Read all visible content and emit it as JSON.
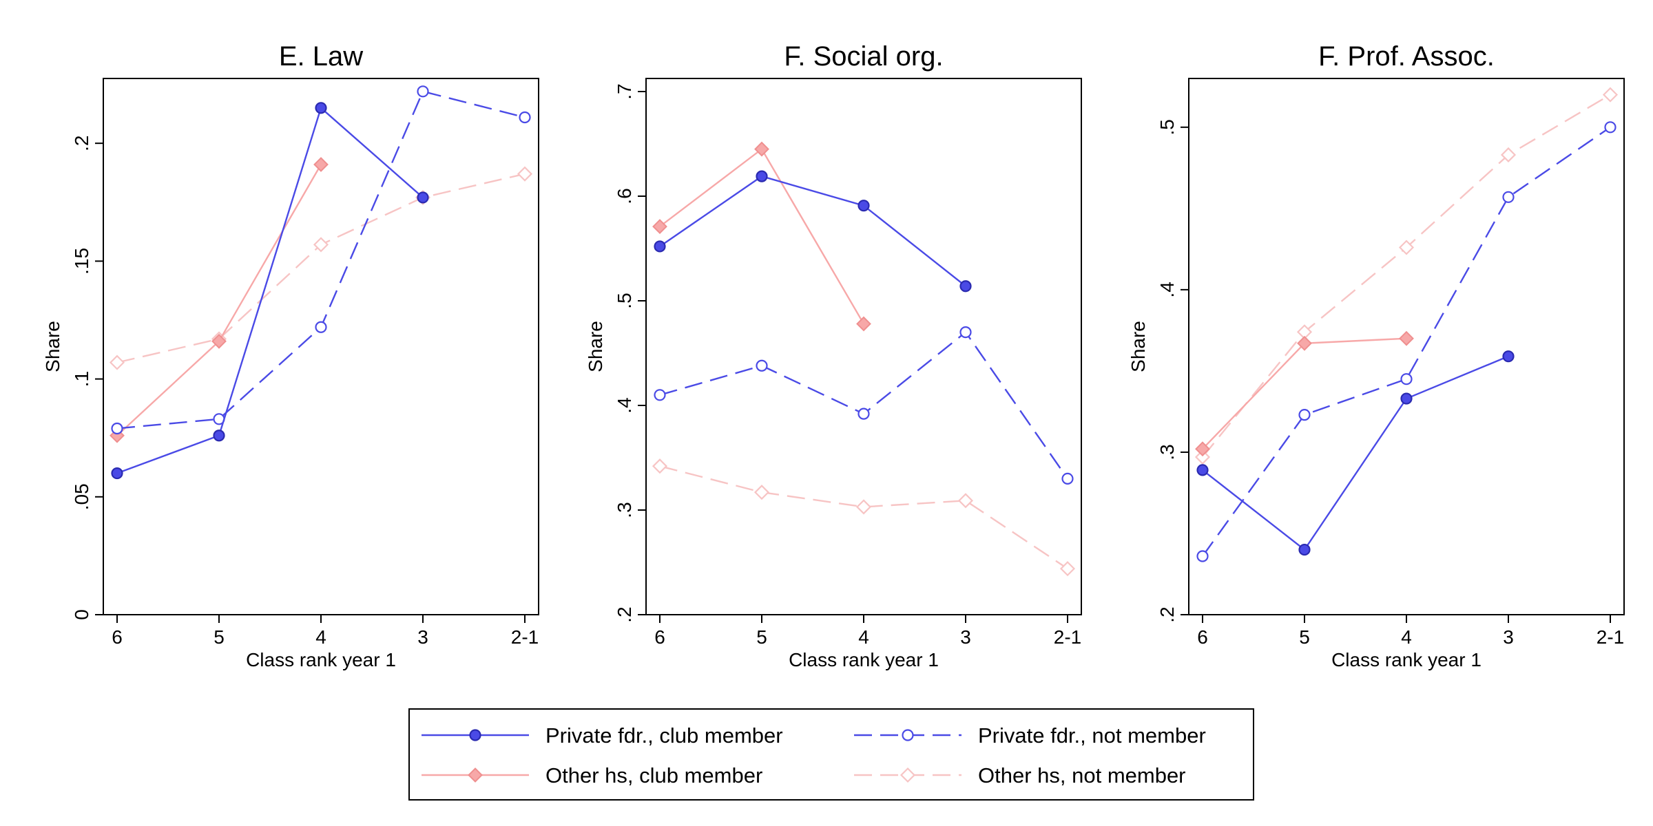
{
  "chart_data": {
    "type": "line",
    "legend_position": "bottom-center",
    "grid": false,
    "categories": [
      "6",
      "5",
      "4",
      "3",
      "2-1"
    ],
    "series_styles": [
      {
        "key": "pfc",
        "name": "Private fdr., club member",
        "color": "#4a4ae6",
        "dash": "solid",
        "marker": "filled-circle"
      },
      {
        "key": "pfn",
        "name": "Private fdr., not member",
        "color": "#4a4ae6",
        "dash": "dashed",
        "marker": "hollow-circle"
      },
      {
        "key": "ohc",
        "name": "Other hs, club member",
        "color": "#f7a8a8",
        "dash": "solid",
        "marker": "filled-diamond"
      },
      {
        "key": "ohn",
        "name": "Other hs, not member",
        "color": "#f7c4c4",
        "dash": "dashed",
        "marker": "hollow-diamond"
      }
    ],
    "panels": [
      {
        "title": "E. Law",
        "xlabel": "Class rank year 1",
        "ylabel": "Share",
        "ylim": [
          0,
          0.2275
        ],
        "yticks": [
          0,
          0.05,
          0.1,
          0.15,
          0.2
        ],
        "ytick_labels": [
          "0",
          ".05",
          ".1",
          ".15",
          ".2"
        ],
        "series": [
          {
            "key": "pfc",
            "values": [
              0.06,
              0.076,
              0.215,
              0.177,
              null
            ]
          },
          {
            "key": "pfn",
            "values": [
              0.079,
              0.083,
              0.122,
              0.222,
              0.211
            ]
          },
          {
            "key": "ohc",
            "values": [
              0.076,
              0.116,
              0.191,
              null,
              null
            ]
          },
          {
            "key": "ohn",
            "values": [
              0.107,
              0.117,
              0.157,
              0.177,
              0.187
            ]
          }
        ]
      },
      {
        "title": "F. Social org.",
        "xlabel": "Class rank year 1",
        "ylabel": "Share",
        "ylim": [
          0.2,
          0.7125
        ],
        "yticks": [
          0.2,
          0.3,
          0.4,
          0.5,
          0.6,
          0.7
        ],
        "ytick_labels": [
          ".2",
          ".3",
          ".4",
          ".5",
          ".6",
          ".7"
        ],
        "series": [
          {
            "key": "pfc",
            "values": [
              0.552,
              0.619,
              0.591,
              0.514,
              null
            ]
          },
          {
            "key": "pfn",
            "values": [
              0.41,
              0.438,
              0.392,
              0.47,
              0.33
            ]
          },
          {
            "key": "ohc",
            "values": [
              0.571,
              0.645,
              0.478,
              null,
              null
            ]
          },
          {
            "key": "ohn",
            "values": [
              0.342,
              0.317,
              0.303,
              0.309,
              0.244
            ]
          }
        ]
      },
      {
        "title": "F. Prof. Assoc.",
        "xlabel": "Class rank year 1",
        "ylabel": "Share",
        "ylim": [
          0.2,
          0.53
        ],
        "yticks": [
          0.2,
          0.3,
          0.4,
          0.5
        ],
        "ytick_labels": [
          ".2",
          ".3",
          ".4",
          ".5"
        ],
        "series": [
          {
            "key": "pfc",
            "values": [
              0.289,
              0.24,
              0.333,
              0.359,
              null
            ]
          },
          {
            "key": "pfn",
            "values": [
              0.236,
              0.323,
              0.345,
              0.457,
              0.5
            ]
          },
          {
            "key": "ohc",
            "values": [
              0.302,
              0.367,
              0.37,
              null,
              null
            ]
          },
          {
            "key": "ohn",
            "values": [
              0.297,
              0.374,
              0.426,
              0.483,
              0.52
            ]
          }
        ]
      }
    ]
  }
}
